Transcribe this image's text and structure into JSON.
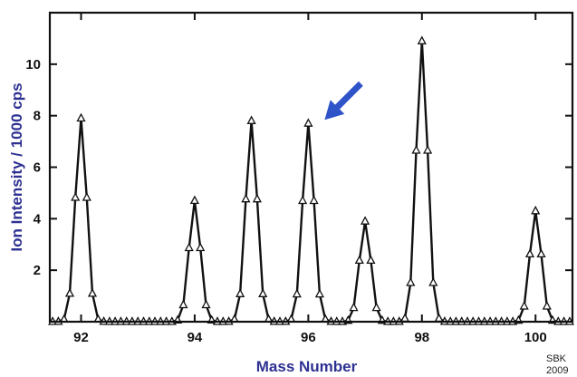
{
  "chart_data": {
    "type": "line",
    "title": "",
    "xlabel": "Mass Number",
    "ylabel": "Ion Intensity  /  1000  cps",
    "xlim": [
      91.45,
      100.65
    ],
    "ylim": [
      0,
      12
    ],
    "xticks": [
      92,
      94,
      96,
      98,
      100
    ],
    "yticks": [
      2,
      4,
      6,
      8,
      10
    ],
    "grid": false,
    "marker": "open-triangle",
    "line_color": "#111111",
    "axis_title_color": "#2e3192",
    "arrow_color": "#2e54c8",
    "arrow_points_to_mass": 96,
    "peaks": [
      {
        "mass": 92,
        "intensity": 7.9
      },
      {
        "mass": 94,
        "intensity": 4.7
      },
      {
        "mass": 95,
        "intensity": 7.8
      },
      {
        "mass": 96,
        "intensity": 7.7
      },
      {
        "mass": 97,
        "intensity": 3.9
      },
      {
        "mass": 98,
        "intensity": 10.9
      },
      {
        "mass": 100,
        "intensity": 4.3
      }
    ],
    "annotations": {
      "credit_line1": "SBK",
      "credit_line2": "2009"
    }
  }
}
